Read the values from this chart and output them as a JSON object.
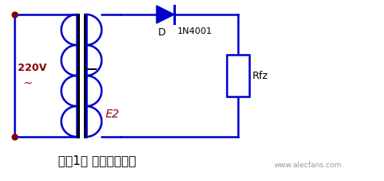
{
  "title": "图（1） 半波整流波形",
  "title_fontsize": 11,
  "background_color": "#ffffff",
  "circuit_color": "#0000cc",
  "text_color_red": "#8b0000",
  "text_color_black": "#000000",
  "label_220V": "220V",
  "label_tilde": "~",
  "label_E2": "E2",
  "label_D": "D",
  "label_1N4001": "1N4001",
  "label_Rfz": "Rfz",
  "watermark": "www.alecfans.com",
  "lw": 1.8
}
